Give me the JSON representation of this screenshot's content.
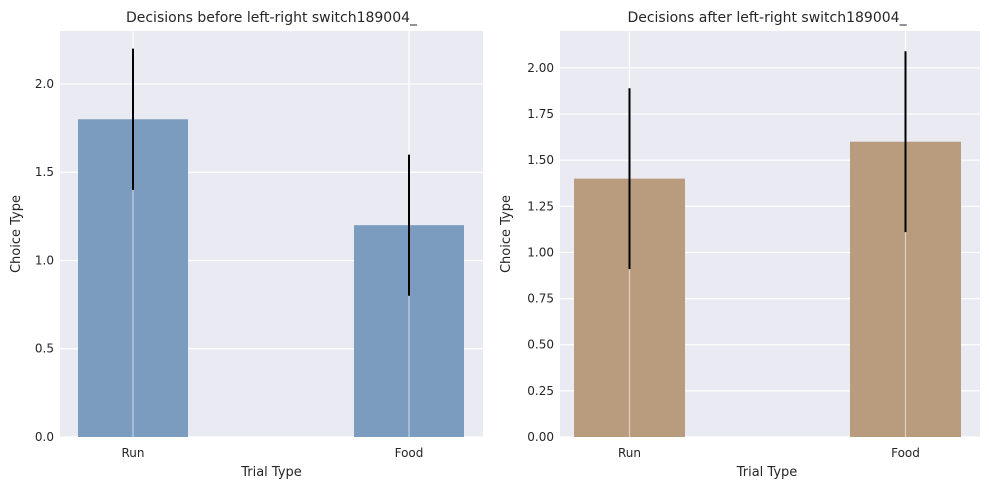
{
  "chart_data": [
    {
      "type": "bar",
      "title": "Decisions before left-right switch189004_",
      "xlabel": "Trial Type",
      "ylabel": "Choice Type",
      "categories": [
        "Run",
        "Food"
      ],
      "values": [
        1.8,
        1.2
      ],
      "errors": [
        0.4,
        0.4
      ],
      "ylim": [
        0,
        2.3
      ],
      "yticks": [
        0.0,
        0.5,
        1.0,
        1.5,
        2.0
      ],
      "ytick_labels": [
        "0.0",
        "0.5",
        "1.0",
        "1.5",
        "2.0"
      ],
      "bar_color": "#7b9bbf",
      "error_color": "#000000",
      "background": "#eaeaf2",
      "grid": true
    },
    {
      "type": "bar",
      "title": "Decisions after left-right switch189004_",
      "xlabel": "Trial Type",
      "ylabel": "Choice Type",
      "categories": [
        "Run",
        "Food"
      ],
      "values": [
        1.4,
        1.6
      ],
      "errors": [
        0.49,
        0.49
      ],
      "ylim": [
        0,
        2.2
      ],
      "yticks": [
        0.0,
        0.25,
        0.5,
        0.75,
        1.0,
        1.25,
        1.5,
        1.75,
        2.0
      ],
      "ytick_labels": [
        "0.00",
        "0.25",
        "0.50",
        "0.75",
        "1.00",
        "1.25",
        "1.50",
        "1.75",
        "2.00"
      ],
      "bar_color": "#b99b7e",
      "error_color": "#000000",
      "background": "#eaeaf2",
      "grid": true
    }
  ]
}
